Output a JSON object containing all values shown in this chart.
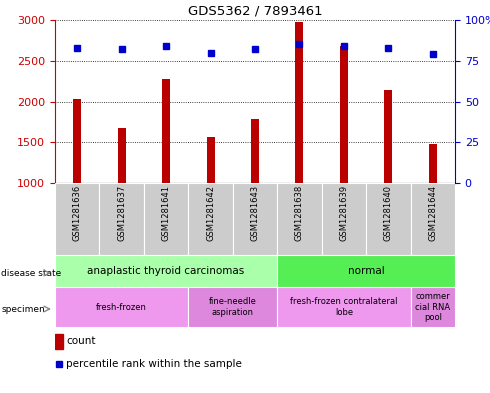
{
  "title": "GDS5362 / 7893461",
  "samples": [
    "GSM1281636",
    "GSM1281637",
    "GSM1281641",
    "GSM1281642",
    "GSM1281643",
    "GSM1281638",
    "GSM1281639",
    "GSM1281640",
    "GSM1281644"
  ],
  "counts": [
    2030,
    1680,
    2280,
    1570,
    1780,
    2980,
    2680,
    2140,
    1480
  ],
  "percentiles": [
    83,
    82,
    84,
    80,
    82,
    85,
    84,
    83,
    79
  ],
  "ylim_left": [
    1000,
    3000
  ],
  "ylim_right": [
    0,
    100
  ],
  "yticks_left": [
    1000,
    1500,
    2000,
    2500,
    3000
  ],
  "yticks_right": [
    0,
    25,
    50,
    75,
    100
  ],
  "bar_color": "#bb0000",
  "dot_color": "#0000cc",
  "grid_color": "#000000",
  "disease_state_groups": [
    {
      "label": "anaplastic thyroid carcinomas",
      "start": 0,
      "end": 5,
      "color": "#aaffaa"
    },
    {
      "label": "normal",
      "start": 5,
      "end": 9,
      "color": "#55ee55"
    }
  ],
  "specimen_groups": [
    {
      "label": "fresh-frozen",
      "start": 0,
      "end": 3,
      "color": "#ee99ee"
    },
    {
      "label": "fine-needle\naspiration",
      "start": 3,
      "end": 5,
      "color": "#dd88dd"
    },
    {
      "label": "fresh-frozen contralateral\nlobe",
      "start": 5,
      "end": 8,
      "color": "#ee99ee"
    },
    {
      "label": "commer\ncial RNA\npool",
      "start": 8,
      "end": 9,
      "color": "#dd88dd"
    }
  ],
  "tick_label_color": "#cc0000",
  "right_tick_color": "#0000cc",
  "bg_color": "#ffffff",
  "legend_count_color": "#bb0000",
  "legend_dot_color": "#0000cc",
  "bar_width": 0.18,
  "tick_col_color": "#cccccc"
}
